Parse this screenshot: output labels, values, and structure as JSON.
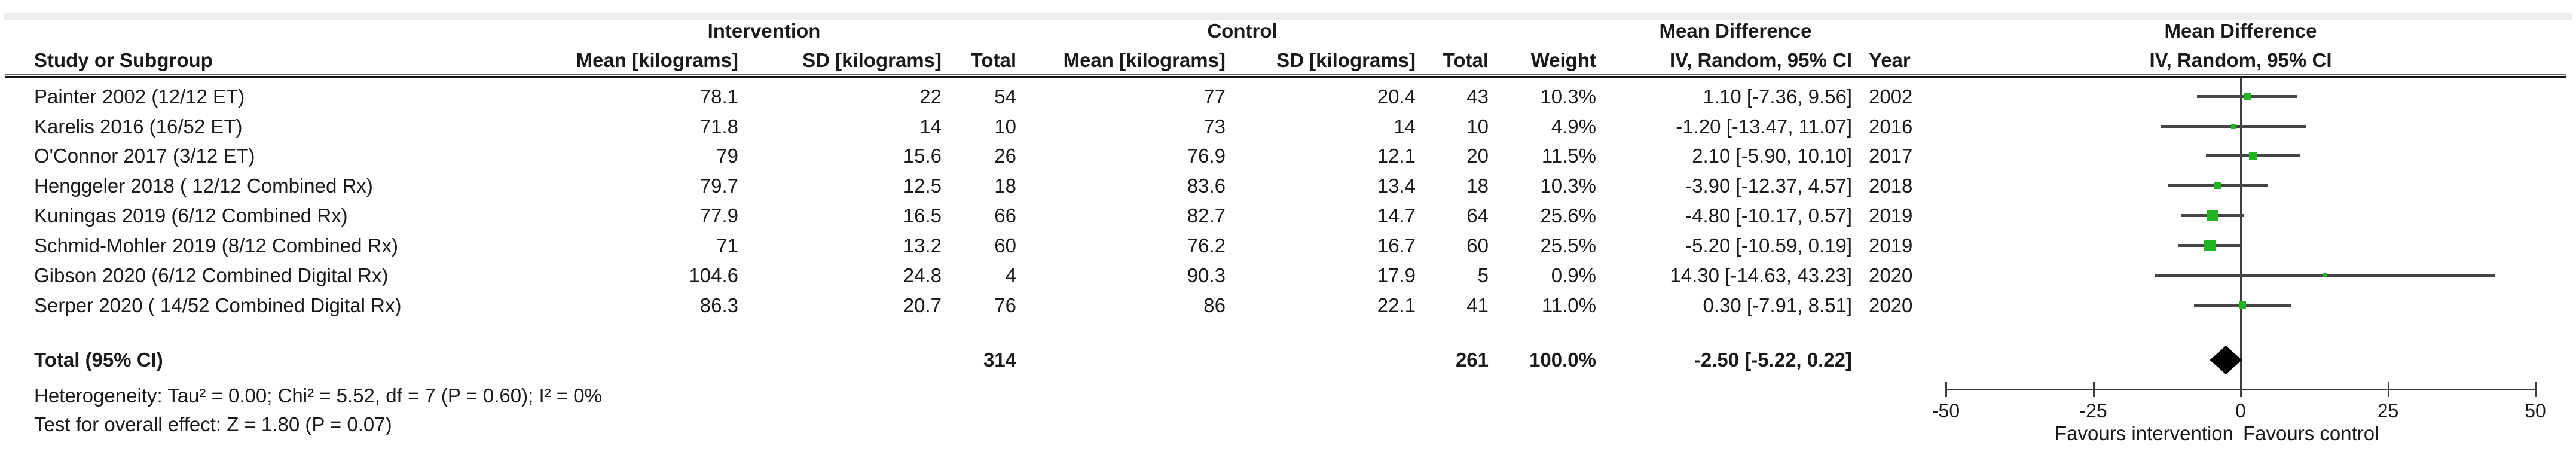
{
  "figure": {
    "group_headers": {
      "intervention": "Intervention",
      "control": "Control",
      "mean_difference": "Mean Difference",
      "mean_difference_plot": "Mean Difference"
    },
    "column_headers": {
      "study": "Study or Subgroup",
      "mean_i": "Mean [kilograms]",
      "sd_i": "SD [kilograms]",
      "total_i": "Total",
      "mean_c": "Mean [kilograms]",
      "sd_c": "SD [kilograms]",
      "total_c": "Total",
      "weight": "Weight",
      "ci": "IV, Random, 95% CI",
      "year": "Year",
      "ci_plot": "IV, Random, 95% CI"
    },
    "rows": [
      {
        "study": "Painter 2002 (12/12 ET)",
        "i_mean": "78.1",
        "i_sd": "22",
        "i_total": "54",
        "c_mean": "77",
        "c_sd": "20.4",
        "c_total": "43",
        "weight": "10.3%",
        "ci": "1.10 [-7.36, 9.56]",
        "year": "2002"
      },
      {
        "study": "Karelis 2016 (16/52 ET)",
        "i_mean": "71.8",
        "i_sd": "14",
        "i_total": "10",
        "c_mean": "73",
        "c_sd": "14",
        "c_total": "10",
        "weight": "4.9%",
        "ci": "-1.20 [-13.47, 11.07]",
        "year": "2016"
      },
      {
        "study": "O'Connor 2017 (3/12 ET)",
        "i_mean": "79",
        "i_sd": "15.6",
        "i_total": "26",
        "c_mean": "76.9",
        "c_sd": "12.1",
        "c_total": "20",
        "weight": "11.5%",
        "ci": "2.10 [-5.90, 10.10]",
        "year": "2017"
      },
      {
        "study": "Henggeler 2018 ( 12/12 Combined Rx)",
        "i_mean": "79.7",
        "i_sd": "12.5",
        "i_total": "18",
        "c_mean": "83.6",
        "c_sd": "13.4",
        "c_total": "18",
        "weight": "10.3%",
        "ci": "-3.90 [-12.37, 4.57]",
        "year": "2018"
      },
      {
        "study": "Kuningas 2019 (6/12 Combined Rx)",
        "i_mean": "77.9",
        "i_sd": "16.5",
        "i_total": "66",
        "c_mean": "82.7",
        "c_sd": "14.7",
        "c_total": "64",
        "weight": "25.6%",
        "ci": "-4.80 [-10.17, 0.57]",
        "year": "2019"
      },
      {
        "study": "Schmid-Mohler 2019 (8/12 Combined Rx)",
        "i_mean": "71",
        "i_sd": "13.2",
        "i_total": "60",
        "c_mean": "76.2",
        "c_sd": "16.7",
        "c_total": "60",
        "weight": "25.5%",
        "ci": "-5.20 [-10.59, 0.19]",
        "year": "2019"
      },
      {
        "study": "Gibson 2020 (6/12 Combined Digital Rx)",
        "i_mean": "104.6",
        "i_sd": "24.8",
        "i_total": "4",
        "c_mean": "90.3",
        "c_sd": "17.9",
        "c_total": "5",
        "weight": "0.9%",
        "ci": "14.30 [-14.63, 43.23]",
        "year": "2020"
      },
      {
        "study": "Serper 2020 ( 14/52 Combined Digital Rx)",
        "i_mean": "86.3",
        "i_sd": "20.7",
        "i_total": "76",
        "c_mean": "86",
        "c_sd": "22.1",
        "c_total": "41",
        "weight": "11.0%",
        "ci": "0.30 [-7.91, 8.51]",
        "year": "2020"
      }
    ],
    "total_row": {
      "label": "Total (95% CI)",
      "i_total": "314",
      "c_total": "261",
      "weight": "100.0%",
      "ci": "-2.50 [-5.22, 0.22]"
    },
    "footnotes": {
      "heterogeneity": "Heterogeneity: Tau² = 0.00; Chi² = 5.52, df = 7 (P = 0.60); I² = 0%",
      "overall_effect": "Test for overall effect: Z = 1.80 (P = 0.07)"
    }
  },
  "chart_data": {
    "type": "forest",
    "title": "Mean Difference",
    "effect_model": "IV, Random, 95% CI",
    "units": "kilograms",
    "xlim": [
      -50,
      50
    ],
    "xticks": [
      -50,
      -25,
      0,
      25,
      50
    ],
    "favours_left": "Favours intervention",
    "favours_right": "Favours control",
    "marker_color": "#22b422",
    "ci_line_color": "#454545",
    "summary_color": "#000000",
    "studies": [
      {
        "name": "Painter 2002 (12/12 ET)",
        "year": 2002,
        "estimate": 1.1,
        "ci_low": -7.36,
        "ci_high": 9.56,
        "weight_pct": 10.3
      },
      {
        "name": "Karelis 2016 (16/52 ET)",
        "year": 2016,
        "estimate": -1.2,
        "ci_low": -13.47,
        "ci_high": 11.07,
        "weight_pct": 4.9
      },
      {
        "name": "O'Connor 2017 (3/12 ET)",
        "year": 2017,
        "estimate": 2.1,
        "ci_low": -5.9,
        "ci_high": 10.1,
        "weight_pct": 11.5
      },
      {
        "name": "Henggeler 2018 ( 12/12 Combined Rx)",
        "year": 2018,
        "estimate": -3.9,
        "ci_low": -12.37,
        "ci_high": 4.57,
        "weight_pct": 10.3
      },
      {
        "name": "Kuningas 2019 (6/12 Combined Rx)",
        "year": 2019,
        "estimate": -4.8,
        "ci_low": -10.17,
        "ci_high": 0.57,
        "weight_pct": 25.6
      },
      {
        "name": "Schmid-Mohler 2019 (8/12 Combined Rx)",
        "year": 2019,
        "estimate": -5.2,
        "ci_low": -10.59,
        "ci_high": 0.19,
        "weight_pct": 25.5
      },
      {
        "name": "Gibson 2020 (6/12 Combined Digital Rx)",
        "year": 2020,
        "estimate": 14.3,
        "ci_low": -14.63,
        "ci_high": 43.23,
        "weight_pct": 0.9
      },
      {
        "name": "Serper 2020 ( 14/52 Combined Digital Rx)",
        "year": 2020,
        "estimate": 0.3,
        "ci_low": -7.91,
        "ci_high": 8.51,
        "weight_pct": 11.0
      }
    ],
    "total": {
      "estimate": -2.5,
      "ci_low": -5.22,
      "ci_high": 0.22,
      "participants_intervention": 314,
      "participants_control": 261,
      "weight_pct": 100.0
    }
  }
}
